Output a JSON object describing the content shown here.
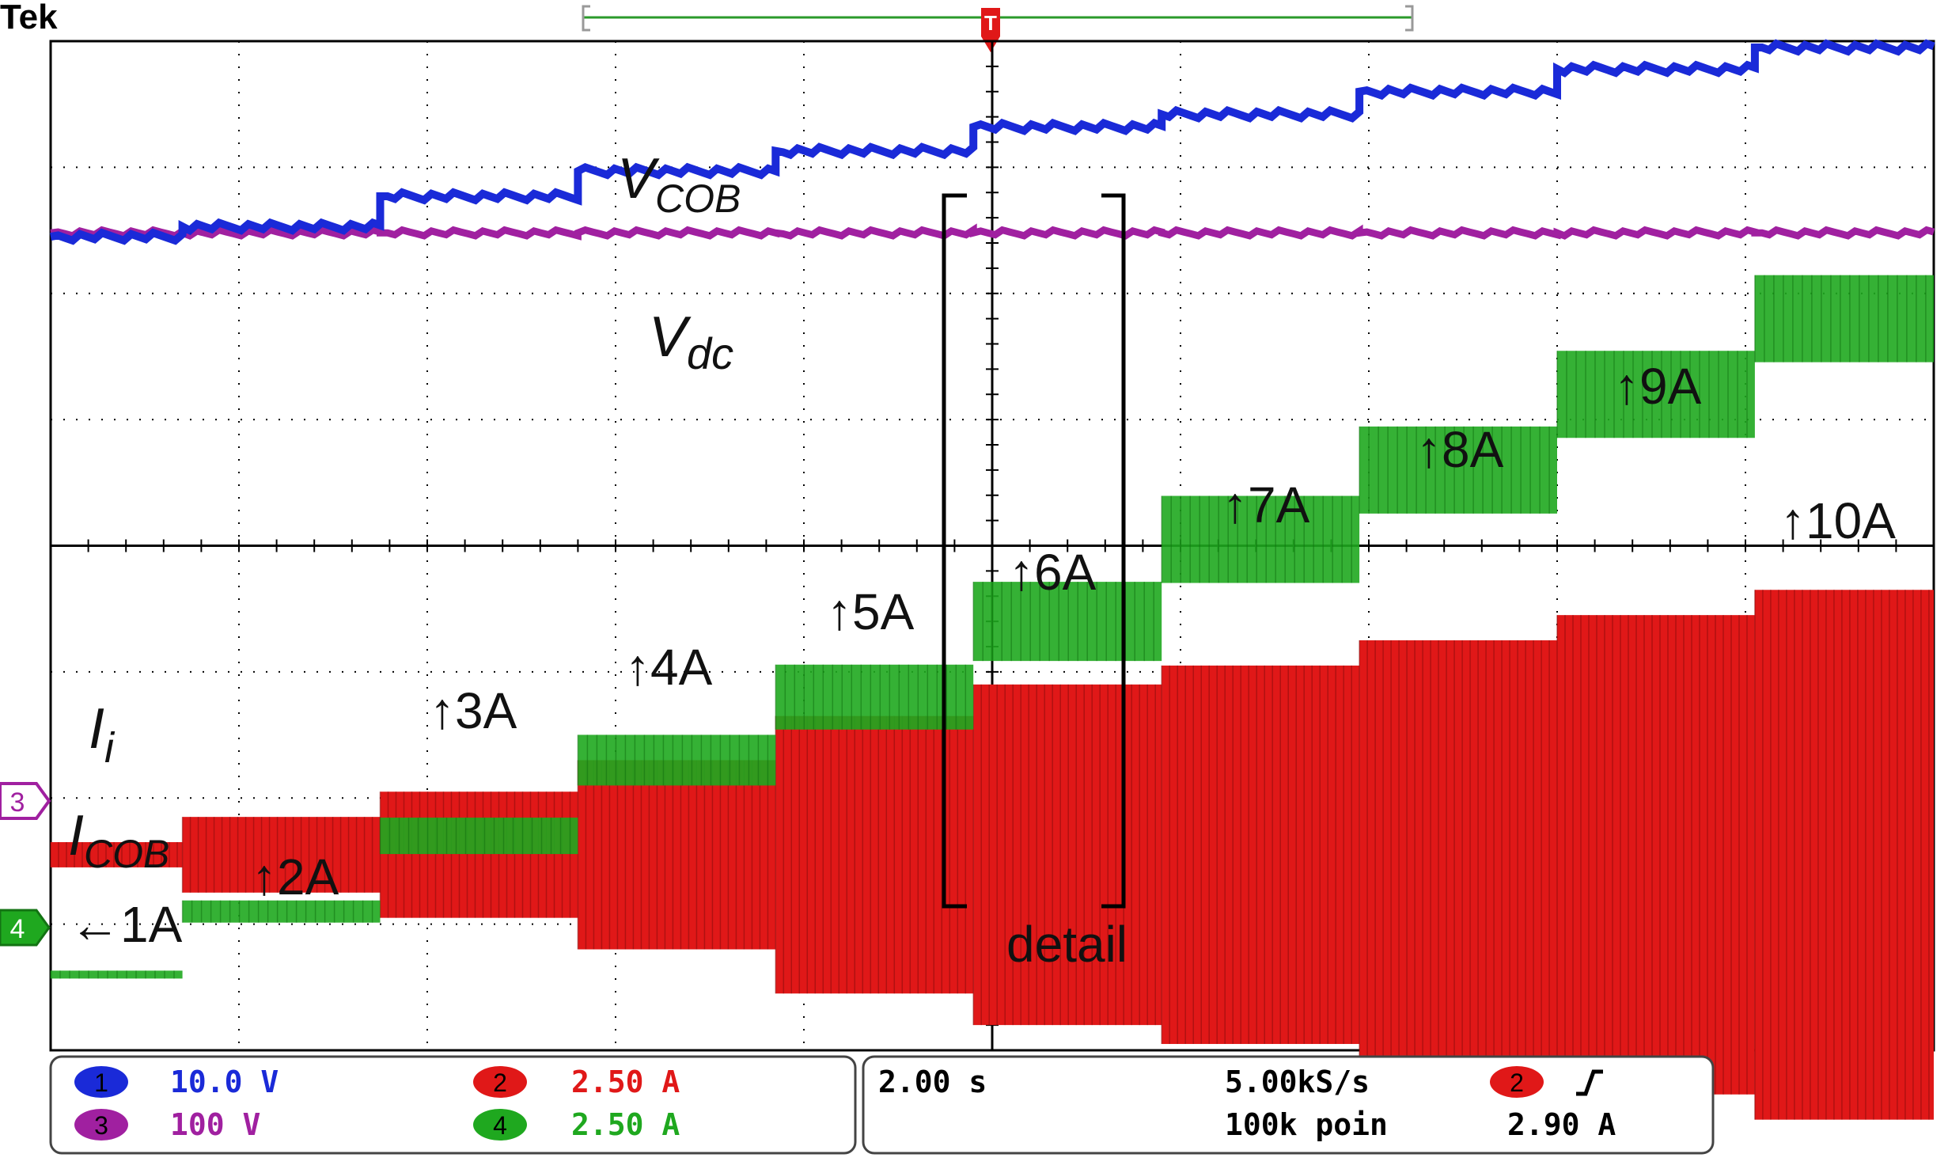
{
  "brand": "Tek",
  "trigger_marker": "T",
  "chart_data": {
    "type": "line",
    "title": "",
    "xlabel": "",
    "ylabel": "",
    "grid": true,
    "x_divisions": 10,
    "y_divisions": 8,
    "time_per_div": "2.00 s",
    "sample_rate": "5.00kS/s",
    "record_length": "100k poin",
    "trigger": {
      "channel": "2",
      "slope": "rising",
      "level": "2.90 A"
    },
    "channels": [
      {
        "number": "1",
        "scale": "10.0 V",
        "color": "#1a2ad8"
      },
      {
        "number": "2",
        "scale": "2.50 A",
        "color": "#e01818"
      },
      {
        "number": "3",
        "scale": "100 V",
        "color": "#a020a0"
      },
      {
        "number": "4",
        "scale": "2.50 A",
        "color": "#1fa81f"
      }
    ],
    "ground_markers": [
      {
        "label": "3",
        "color": "#a020a0"
      },
      {
        "label": "4",
        "color": "#1fa81f"
      }
    ],
    "step_times_div": [
      0.7,
      1.75,
      2.8,
      3.85,
      4.9,
      5.9,
      6.95,
      8.0,
      9.05
    ],
    "series": [
      {
        "name": "V_COB",
        "channel": "1",
        "levels_div": [
          2.45,
          2.53,
          2.77,
          2.97,
          3.13,
          3.32,
          3.42,
          3.6,
          3.78,
          3.95
        ]
      },
      {
        "name": "V_dc",
        "channel": "3",
        "levels_div": [
          2.48,
          2.48,
          2.48,
          2.48,
          2.48,
          2.48,
          2.48,
          2.48,
          2.48,
          2.48
        ]
      },
      {
        "name": "I_COB",
        "channel": "4",
        "levels_div": [
          -3.4,
          -2.9,
          -2.3,
          -1.7,
          -1.2,
          -0.6,
          0.05,
          0.6,
          1.2,
          1.8
        ]
      },
      {
        "name": "I_i",
        "channel": "2",
        "amplitude_div": [
          0.1,
          0.3,
          0.5,
          0.75,
          1.1,
          1.35,
          1.5,
          1.7,
          1.9,
          2.1
        ],
        "center_div": -2.45
      }
    ],
    "annotations": {
      "vcob_label": {
        "main": "V",
        "sub": "COB"
      },
      "vdc_label": {
        "main": "V",
        "sub": "dc"
      },
      "ii_label": {
        "main": "I",
        "sub": "i"
      },
      "icob_label": {
        "main": "I",
        "sub": "COB"
      },
      "current_steps": [
        "←1A",
        "↑2A",
        "↑3A",
        "↑4A",
        "↑5A",
        "↑6A",
        "↑7A",
        "↑8A",
        "↑9A",
        "↑10A"
      ],
      "detail": "detail"
    }
  }
}
